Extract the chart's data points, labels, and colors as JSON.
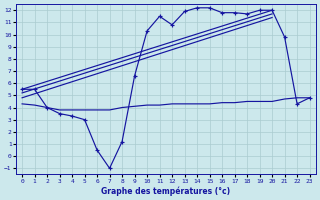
{
  "bg_color": "#cce8ec",
  "line_color": "#1515a0",
  "grid_color": "#aaccd0",
  "xlabel": "Graphe des températures (°c)",
  "xlim": [
    -0.5,
    23.5
  ],
  "ylim": [
    -1.5,
    12.5
  ],
  "xticks": [
    0,
    1,
    2,
    3,
    4,
    5,
    6,
    7,
    8,
    9,
    10,
    11,
    12,
    13,
    14,
    15,
    16,
    17,
    18,
    19,
    20,
    21,
    22,
    23
  ],
  "yticks": [
    -1,
    0,
    1,
    2,
    3,
    4,
    5,
    6,
    7,
    8,
    9,
    10,
    11,
    12
  ],
  "main_x": [
    0,
    1,
    2,
    3,
    4,
    5,
    6,
    7,
    8,
    9,
    10,
    11,
    12,
    13,
    14,
    15,
    16,
    17,
    18,
    19,
    20,
    21,
    22,
    23
  ],
  "main_y": [
    5.5,
    5.5,
    4.0,
    3.5,
    3.3,
    3.0,
    0.5,
    -1.0,
    1.2,
    6.6,
    10.3,
    11.5,
    10.8,
    11.9,
    12.2,
    12.2,
    11.8,
    11.8,
    11.7,
    12.0,
    12.0,
    9.8,
    4.3,
    4.8
  ],
  "flat_x": [
    0,
    1,
    2,
    3,
    4,
    5,
    6,
    7,
    8,
    9,
    10,
    11,
    12,
    13,
    14,
    15,
    16,
    17,
    18,
    19,
    20,
    21,
    22,
    23
  ],
  "flat_y": [
    4.3,
    4.2,
    4.0,
    3.8,
    3.8,
    3.8,
    3.8,
    3.8,
    4.0,
    4.1,
    4.2,
    4.2,
    4.3,
    4.3,
    4.3,
    4.3,
    4.4,
    4.4,
    4.5,
    4.5,
    4.5,
    4.7,
    4.8,
    4.8
  ],
  "trend_lines": [
    {
      "x0": 0,
      "y0": 5.5,
      "x1": 20,
      "y1": 12.0
    },
    {
      "x0": 0,
      "y0": 5.2,
      "x1": 20,
      "y1": 11.7
    },
    {
      "x0": 0,
      "y0": 4.8,
      "x1": 20,
      "y1": 11.4
    }
  ]
}
